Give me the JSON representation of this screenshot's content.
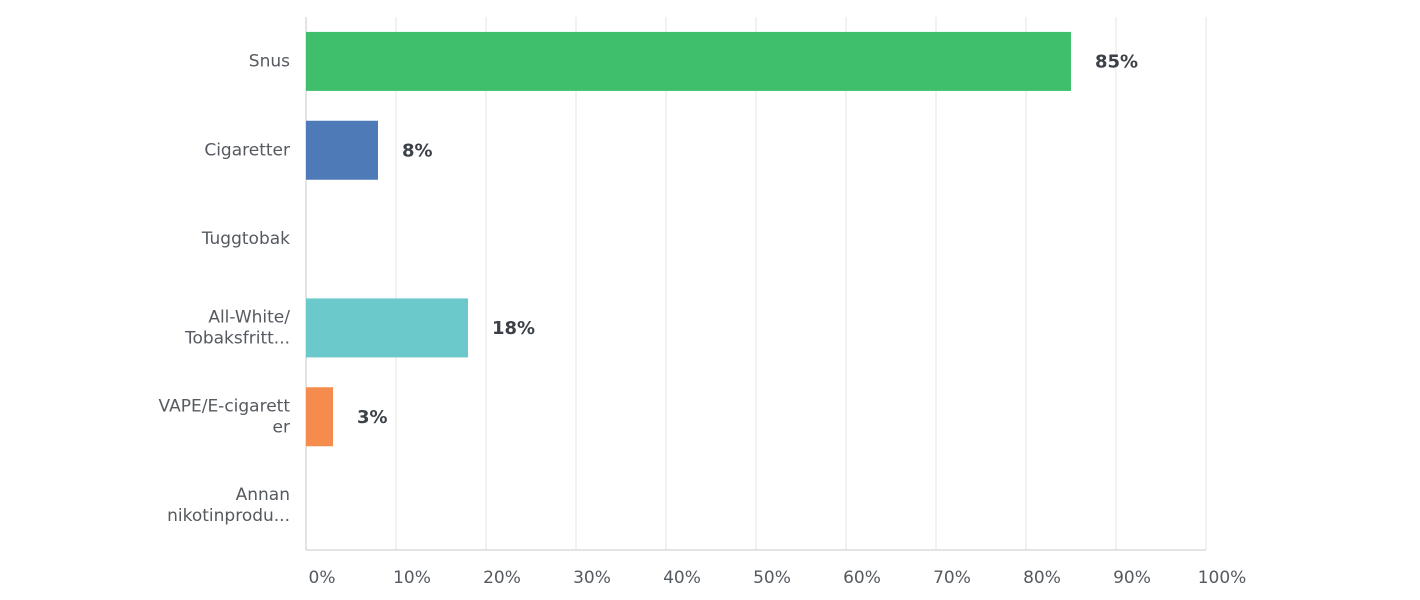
{
  "chart_data": {
    "type": "hbar",
    "categories": [
      [
        "Snus"
      ],
      [
        "Cigaretter"
      ],
      [
        "Tuggtobak"
      ],
      [
        "All-White/",
        "Tobaksfritt..."
      ],
      [
        "VAPE/E-cigarett",
        "er"
      ],
      [
        "Annan",
        "nikotinprodu..."
      ]
    ],
    "values": [
      85,
      8,
      0,
      18,
      3,
      0
    ],
    "value_labels": [
      "85%",
      "8%",
      null,
      "18%",
      "3%",
      null
    ],
    "colors": [
      "#3fbf6b",
      "#4f7ab8",
      null,
      "#6bc8cb",
      "#f58b4c",
      null
    ],
    "xlim": [
      0,
      100
    ],
    "xticks": [
      {
        "value": 0,
        "label": "0%"
      },
      {
        "value": 10,
        "label": "10%"
      },
      {
        "value": 20,
        "label": "20%"
      },
      {
        "value": 30,
        "label": "30%"
      },
      {
        "value": 40,
        "label": "40%"
      },
      {
        "value": 50,
        "label": "50%"
      },
      {
        "value": 60,
        "label": "60%"
      },
      {
        "value": 70,
        "label": "70%"
      },
      {
        "value": 80,
        "label": "80%"
      },
      {
        "value": 90,
        "label": "90%"
      },
      {
        "value": 100,
        "label": "100%"
      }
    ],
    "grid": true
  }
}
